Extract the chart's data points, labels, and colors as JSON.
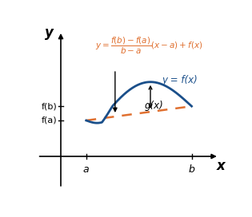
{
  "bg_color": "#ffffff",
  "curve_color": "#1a4f8a",
  "secant_color": "#e07030",
  "text_color_blue": "#1a4f8a",
  "text_color_orange": "#e07030",
  "text_color_black": "#000000",
  "label_a": "a",
  "label_b": "b",
  "label_fa": "f(a)",
  "label_fb": "f(b)",
  "label_fx": "y = f(x)",
  "label_gx": "g(x)",
  "label_x": "x",
  "label_y": "y"
}
